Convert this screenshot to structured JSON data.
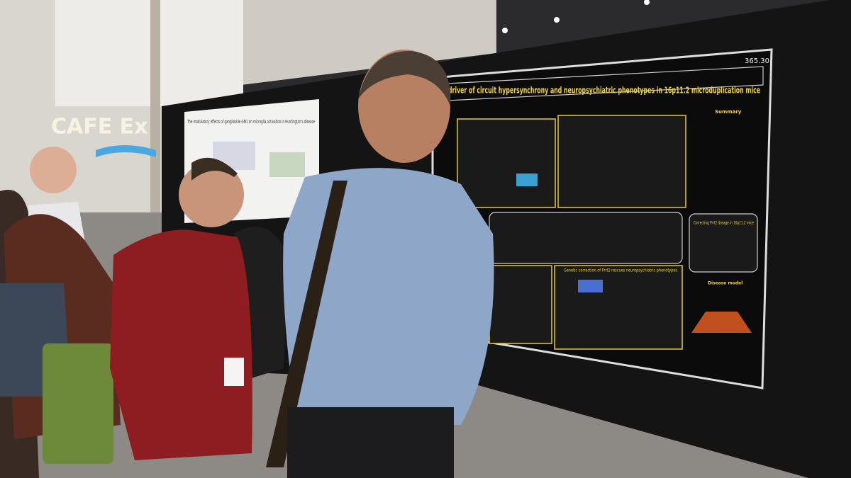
{
  "scene": {
    "sign": {
      "text": "CAFE Ex"
    },
    "left_poster": {
      "title": "The modulatory effects of ganglioside GM1 on microglia activation in Huntington's disease"
    },
    "main_poster": {
      "number": "365.30",
      "title": "driver of circuit hypersynchrony and neuropsychiatric phenotypes in 16p11.2 microduplication mice",
      "summary_heading": "Summary",
      "correction_heading": "Correcting Prrt2 dosage in 16p11.2 mice",
      "genetic_heading": "Genetic correction of Prrt2 rescues neuropsychiatric phenotypes",
      "model_heading": "Disease model"
    }
  }
}
